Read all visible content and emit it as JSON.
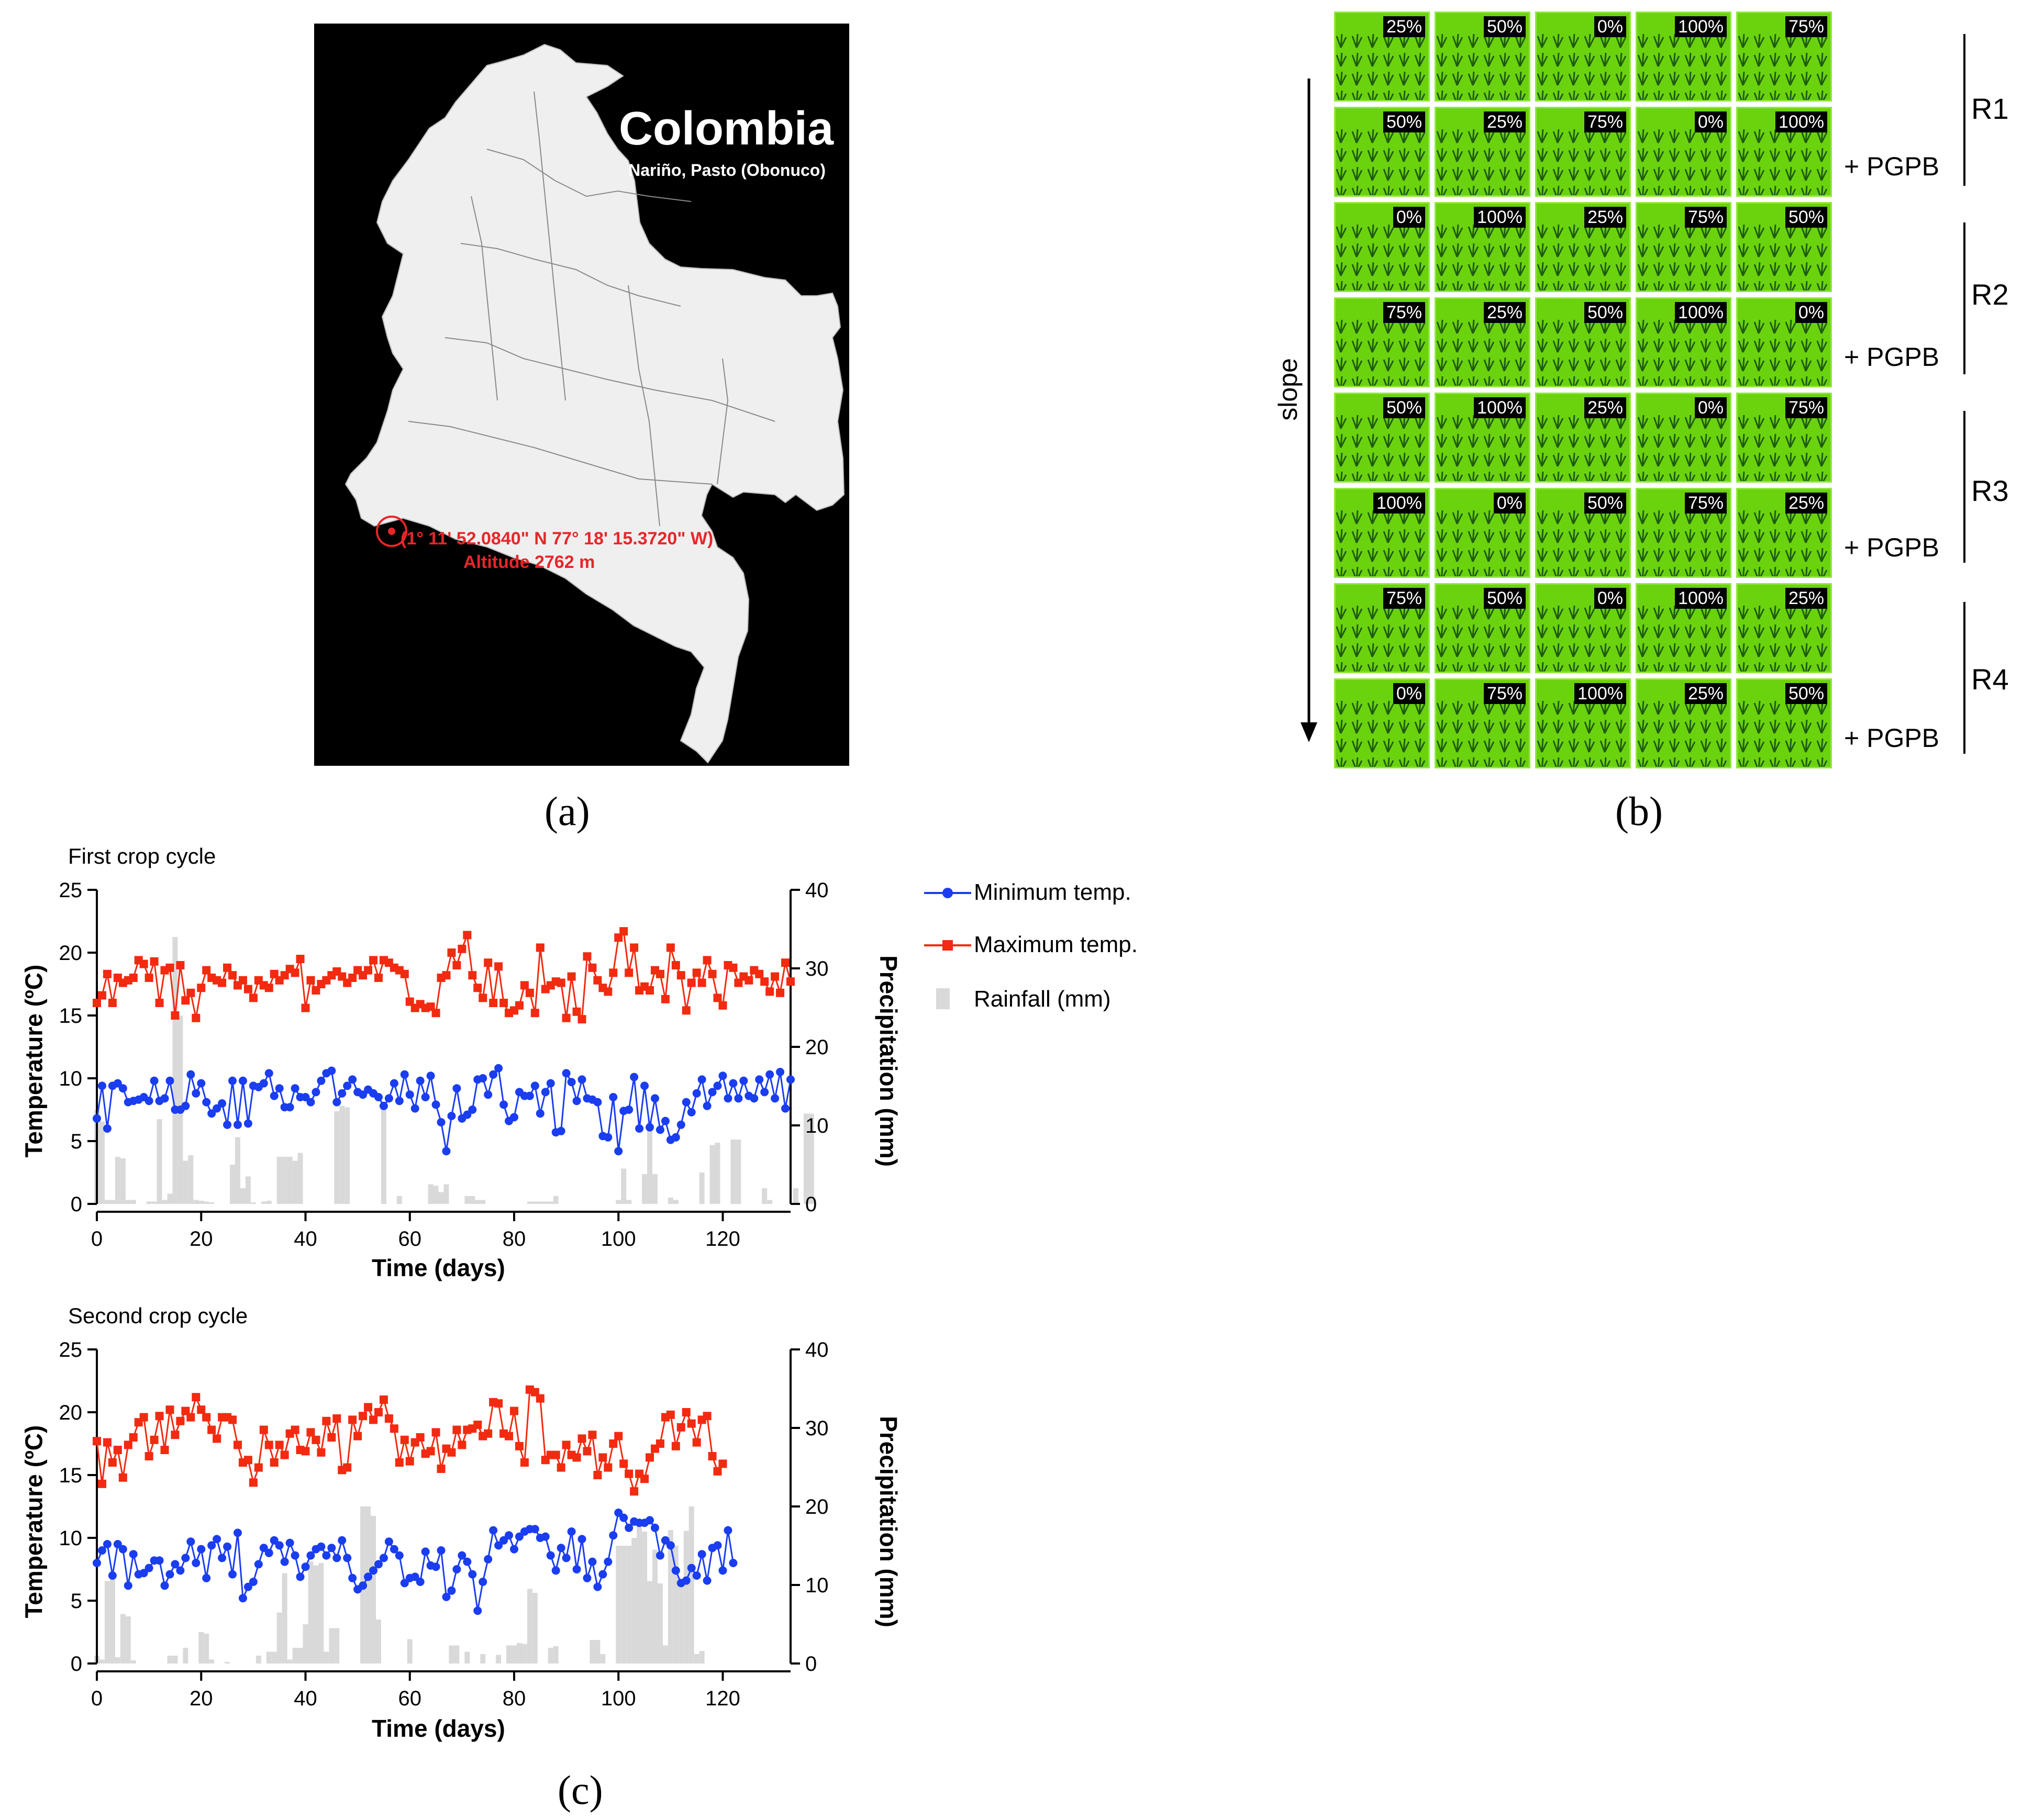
{
  "panel_labels": {
    "a": "(a)",
    "b": "(b)",
    "c": "(c)"
  },
  "map": {
    "country": "Colombia",
    "place": "Nariño, Pasto (Obonuco)",
    "coordinates": "(1° 11' 52.0840\" N 77° 18' 15.3720\" W)",
    "altitude": "Altitude 2762 m",
    "colors": {
      "background": "#000000",
      "land": "#efefef",
      "marker": "#e8262a"
    }
  },
  "plot_layout": {
    "rows": [
      {
        "values": [
          "25%",
          "50%",
          "0%",
          "100%",
          "75%"
        ],
        "treatment": ""
      },
      {
        "values": [
          "50%",
          "25%",
          "75%",
          "0%",
          "100%"
        ],
        "treatment": "+ PGPB"
      },
      {
        "values": [
          "0%",
          "100%",
          "25%",
          "75%",
          "50%"
        ],
        "treatment": ""
      },
      {
        "values": [
          "75%",
          "25%",
          "50%",
          "100%",
          "0%"
        ],
        "treatment": "+ PGPB"
      },
      {
        "values": [
          "50%",
          "100%",
          "25%",
          "0%",
          "75%"
        ],
        "treatment": ""
      },
      {
        "values": [
          "100%",
          "0%",
          "50%",
          "75%",
          "25%"
        ],
        "treatment": "+ PGPB"
      },
      {
        "values": [
          "75%",
          "50%",
          "0%",
          "100%",
          "25%"
        ],
        "treatment": ""
      },
      {
        "values": [
          "0%",
          "75%",
          "100%",
          "25%",
          "50%"
        ],
        "treatment": "+ PGPB"
      }
    ],
    "replicates": [
      "R1",
      "R2",
      "R3",
      "R4"
    ],
    "slope_label": "slope",
    "colors": {
      "plot": "#6bd30e",
      "badge": "#000000"
    }
  },
  "legend": {
    "min": "Minimum temp.",
    "max": "Maximum temp.",
    "rain": "Rainfall (mm)"
  },
  "colors": {
    "min": "#1a3df0",
    "max": "#f22a10",
    "rain": "#d9d9d9"
  },
  "chart_data": [
    {
      "type": "line",
      "title": "First crop cycle",
      "xlabel": "Time (days)",
      "ylabel": "Temperature (ºC)",
      "y2label": "Precipitation (mm)",
      "xlim": [
        0,
        133
      ],
      "ylim": [
        0,
        25
      ],
      "y2lim": [
        0,
        40
      ],
      "xticks": [
        0,
        20,
        40,
        60,
        80,
        100,
        120
      ],
      "yticks": [
        0,
        5,
        10,
        15,
        20,
        25
      ],
      "y2ticks": [
        0,
        10,
        20,
        30,
        40
      ],
      "series": [
        {
          "name": "Minimum temp.",
          "values": [
            6.8,
            9.4,
            6,
            9.4,
            9.6,
            9.2,
            8.1,
            8.2,
            8.3,
            8.5,
            8.2,
            9.8,
            8.2,
            8.4,
            9.8,
            7.5,
            7.5,
            7.8,
            10.3,
            8.8,
            9.6,
            8.1,
            7.2,
            7.6,
            8,
            6.3,
            9.8,
            6.3,
            9.8,
            6.4,
            9.4,
            9.3,
            9.6,
            10.4,
            8.6,
            9.2,
            7.7,
            7.7,
            9.2,
            8.5,
            8.5,
            8.1,
            8.9,
            9.8,
            10.4,
            10.6,
            8.1,
            8.8,
            9.4,
            9.9,
            8.9,
            8.7,
            9.1,
            8.8,
            8.5,
            7.8,
            8.4,
            9.6,
            8.2,
            10.3,
            8.7,
            7.6,
            9.8,
            8.5,
            10.2,
            7.9,
            6.5,
            4.2,
            7,
            9.2,
            6.8,
            7.1,
            7.5,
            9.9,
            10,
            8.7,
            10.3,
            10.8,
            7.9,
            6.6,
            6.9,
            8.9,
            8.6,
            8.6,
            9.4,
            7.2,
            8.9,
            9.6,
            5.7,
            5.8,
            10.4,
            9.7,
            8.2,
            9.9,
            8.4,
            8.3,
            8.1,
            5.4,
            5.3,
            8.5,
            4.2,
            7.4,
            7.5,
            10.1,
            6,
            9.4,
            6.1,
            8.4,
            5.9,
            6.6,
            5.1,
            5.3,
            6.3,
            8.1,
            7.3,
            8.8,
            9.9,
            7.8,
            8.9,
            9.4,
            10.2,
            8.4,
            9.6,
            8.4,
            9.8,
            8.6,
            8.4,
            9.9,
            8.9,
            10.3,
            8.4,
            10.5,
            7.6,
            9.9
          ]
        },
        {
          "name": "Maximum temp.",
          "values": [
            16,
            16.6,
            18.3,
            16,
            18,
            17.6,
            17.8,
            18,
            19.4,
            19.1,
            18,
            19.3,
            16,
            18.6,
            18.8,
            15,
            19,
            16.2,
            16.8,
            14.8,
            17.2,
            18.6,
            18,
            17.8,
            17.6,
            18.8,
            18.2,
            17.4,
            17.8,
            17.1,
            16.4,
            17.8,
            17.4,
            17.2,
            18.3,
            17.8,
            18.2,
            18.7,
            18.4,
            19.5,
            15.6,
            17.8,
            17,
            17.5,
            17.8,
            18.2,
            18.5,
            18.1,
            17.6,
            18,
            18.6,
            18.2,
            18.6,
            19.4,
            18,
            19.4,
            19.2,
            18.8,
            18.6,
            18.3,
            16.1,
            15.6,
            15.9,
            15.6,
            15.7,
            15.2,
            18,
            18.2,
            20,
            19,
            20.3,
            21.4,
            18.2,
            17.2,
            16.4,
            19.2,
            16,
            18.9,
            16,
            15.2,
            15.4,
            15.8,
            17.4,
            16.8,
            15.2,
            20.4,
            17.1,
            17.4,
            17.7,
            17.6,
            14.8,
            18.1,
            15.3,
            14.7,
            19.7,
            18.8,
            17.8,
            17.2,
            16.9,
            18.4,
            21.2,
            21.7,
            18.4,
            20.4,
            17,
            17.3,
            17,
            18.6,
            18.3,
            16.3,
            20.4,
            19,
            18.2,
            15.4,
            17.6,
            18.4,
            17.6,
            19.4,
            18.3,
            16.4,
            15.8,
            19,
            18.8,
            17.6,
            18.1,
            17.8,
            18.6,
            18.3,
            17.7,
            16.9,
            18.1,
            16.8,
            19.2,
            17.7
          ]
        },
        {
          "name": "Rainfall (mm)",
          "values": [
            12,
            10.5,
            0.5,
            0.5,
            6,
            5.8,
            0.5,
            0.5,
            0,
            0,
            0.3,
            0.3,
            10.8,
            0.5,
            1.3,
            34,
            24,
            5.5,
            6.2,
            0.5,
            0.4,
            0.3,
            0.2,
            0,
            0,
            0,
            5,
            8.5,
            2,
            3.5,
            0.2,
            0,
            0.3,
            0.4,
            0,
            6,
            6,
            6,
            5.5,
            6.5,
            0,
            0,
            0,
            0,
            0,
            0,
            11.8,
            12.5,
            12.3,
            0,
            0,
            0,
            0,
            0,
            0,
            12,
            0,
            0,
            1,
            0,
            0,
            0,
            0,
            0,
            2.5,
            2.3,
            1.5,
            2.5,
            0,
            0,
            0,
            1,
            1,
            0.5,
            0.5,
            0,
            0,
            0,
            0,
            0,
            0,
            0,
            0,
            0.3,
            0.3,
            0.3,
            0.3,
            0.3,
            1,
            0,
            0,
            0,
            0,
            0,
            0,
            0,
            0,
            0,
            0,
            0,
            0.5,
            4.5,
            0.5,
            0,
            0,
            3.8,
            10.5,
            3.8,
            0,
            0,
            0.8,
            0.5,
            0,
            0,
            0,
            0,
            4,
            0,
            7.5,
            7.8,
            0,
            0,
            8.2,
            8.2,
            0,
            0,
            0,
            0,
            2,
            0.5,
            0,
            0,
            0,
            0,
            2,
            0,
            11.5,
            11.5,
            0
          ]
        }
      ]
    },
    {
      "type": "line",
      "title": "Second crop cycle",
      "xlabel": "Time (days)",
      "ylabel": "Temperature (ºC)",
      "y2label": "Precipitation (mm)",
      "xlim": [
        0,
        133
      ],
      "ylim": [
        0,
        25
      ],
      "y2lim": [
        0,
        40
      ],
      "xticks": [
        0,
        20,
        40,
        60,
        80,
        100,
        120
      ],
      "yticks": [
        0,
        5,
        10,
        15,
        20,
        25
      ],
      "y2ticks": [
        0,
        10,
        20,
        30,
        40
      ],
      "series": [
        {
          "name": "Minimum temp.",
          "values": [
            8,
            9,
            9.5,
            7,
            9.5,
            9.1,
            6.2,
            8.7,
            7.1,
            7.2,
            7.6,
            8.2,
            8.2,
            6.2,
            7.1,
            7.9,
            7.4,
            8.4,
            9.7,
            8,
            9.1,
            6.8,
            9.4,
            9.9,
            8.4,
            9.3,
            7.1,
            10.4,
            5.2,
            6.1,
            6.5,
            7.9,
            9.2,
            8.8,
            9.8,
            9.4,
            8.1,
            9.6,
            8.6,
            6.9,
            7.7,
            8.6,
            9.1,
            9.3,
            8.6,
            9.2,
            8.4,
            9.8,
            8.4,
            6.8,
            5.9,
            6.2,
            6.9,
            7.4,
            7.9,
            8.4,
            9.7,
            9.1,
            8.6,
            6.4,
            6.8,
            6.9,
            6.5,
            8.9,
            7.8,
            7.7,
            9,
            5.3,
            5.8,
            7.5,
            8.6,
            8.1,
            7.1,
            4.2,
            6.5,
            8.3,
            10.6,
            9.4,
            9.8,
            10.2,
            9.1,
            10.1,
            10.5,
            10.7,
            10.7,
            10,
            10.1,
            8.6,
            7.4,
            9.2,
            8.4,
            10.5,
            7.5,
            9.9,
            6.8,
            8.1,
            6.1,
            7.1,
            8.1,
            10.2,
            12,
            11.6,
            10.8,
            11.3,
            11.2,
            11.2,
            11.4,
            10.8,
            8.6,
            9.8,
            9.4,
            7.4,
            6.4,
            6.6,
            7.6,
            7,
            8.7,
            6.6,
            9.2,
            9.4,
            7.4,
            10.6,
            8
          ]
        },
        {
          "name": "Maximum temp.",
          "values": [
            17.7,
            14.3,
            17.6,
            16,
            17,
            14.8,
            17.4,
            18,
            19.2,
            19.6,
            16.5,
            17.8,
            19.7,
            17,
            20.2,
            18.2,
            19.3,
            20.1,
            19.6,
            21.2,
            20.2,
            19.6,
            18.6,
            17.9,
            19.6,
            19.6,
            19.4,
            17.4,
            16,
            16.2,
            14.4,
            15.6,
            18.6,
            17.4,
            16,
            17.4,
            16.6,
            18.3,
            18.6,
            17,
            16.9,
            18.4,
            17.8,
            16.8,
            19.3,
            18,
            19.5,
            15.4,
            15.6,
            19.4,
            18.1,
            19.7,
            20.4,
            19.4,
            20,
            21,
            19.5,
            18.7,
            16,
            17.8,
            16.1,
            17.6,
            18,
            16.7,
            16.9,
            18.4,
            15.5,
            17.1,
            16.8,
            18.6,
            17.4,
            18.6,
            18.7,
            19,
            18.1,
            18.3,
            20.8,
            20.7,
            18.3,
            18.1,
            20.1,
            17.3,
            16,
            21.8,
            21.6,
            21.1,
            16.2,
            16.6,
            16.6,
            15.6,
            17.4,
            16.6,
            16.4,
            17.9,
            16.9,
            18.2,
            15,
            16.4,
            15.6,
            17.5,
            18.1,
            15.9,
            15.1,
            13.7,
            15.1,
            14.7,
            16.4,
            17.1,
            17.5,
            19.6,
            19.8,
            17.3,
            18.8,
            20,
            19.1,
            17.6,
            19.4,
            19.7,
            16.5,
            15.3,
            15.9
          ]
        },
        {
          "name": "Rainfall (mm)",
          "values": [
            1,
            0.5,
            10.5,
            10.8,
            0.8,
            6.3,
            6,
            0.4,
            0,
            0,
            0,
            0,
            0,
            0,
            1,
            1,
            0,
            2,
            0,
            0,
            4,
            3.8,
            0.5,
            0,
            0,
            0.2,
            0,
            0,
            0,
            0,
            0,
            1,
            0,
            1.5,
            1.5,
            6.5,
            11.5,
            0.5,
            2,
            2,
            5,
            13,
            12.5,
            12.8,
            1.5,
            4.5,
            4.5,
            0,
            0,
            0,
            0,
            20,
            20,
            18.8,
            5.6,
            0,
            0,
            0,
            0,
            0,
            3.1,
            0,
            0,
            0,
            0,
            0,
            0,
            0,
            2.3,
            2.3,
            0,
            1.5,
            0,
            0,
            1.2,
            0,
            0,
            1.1,
            0,
            2.3,
            2.3,
            2.6,
            2.5,
            9.5,
            9,
            0,
            0,
            2,
            2.2,
            0,
            0,
            0,
            0,
            0,
            0,
            3,
            3,
            1.2,
            0,
            0,
            15,
            15,
            15,
            16,
            17.5,
            16.8,
            10.5,
            14.5,
            10.2,
            2.3,
            17,
            15,
            10.6,
            16.9,
            20,
            1.2,
            1.6,
            0,
            0,
            0
          ]
        }
      ]
    }
  ]
}
